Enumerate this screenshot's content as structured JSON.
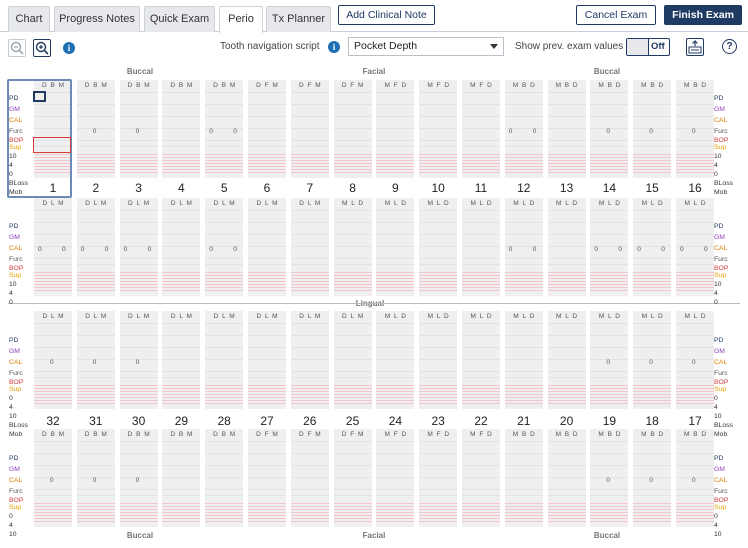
{
  "tabs": [
    {
      "label": "Chart",
      "active": false
    },
    {
      "label": "Progress Notes",
      "active": false
    },
    {
      "label": "Quick Exam",
      "active": false
    },
    {
      "label": "Perio",
      "active": true
    },
    {
      "label": "Tx Planner",
      "active": false
    }
  ],
  "actions": {
    "add_clinical_note": "Add Clinical Note",
    "cancel_exam": "Cancel Exam",
    "finish_exam": "Finish Exam"
  },
  "toolbar": {
    "nav_script_label": "Tooth navigation script",
    "nav_script_value": "Pocket Depth",
    "show_prev_label": "Show prev. exam values",
    "toggle_state": "Off",
    "info_glyph": "i",
    "help_glyph": "?"
  },
  "sections": {
    "buccal": "Buccal",
    "facial": "Facial",
    "lingual": "Lingual"
  },
  "row_labels": {
    "pd": "PD",
    "gm": "GM",
    "cal": "CAL",
    "furc": "Furc",
    "bop": "BOP",
    "sup": "Sup",
    "bloss": "BLoss",
    "mob": "Mob",
    "scale_top": [
      "10",
      "4",
      "0"
    ],
    "scale_bottom": [
      "0",
      "4",
      "10"
    ]
  },
  "colors": {
    "pd": "#1f3a63",
    "gm": "#8a3fb5",
    "cal": "#e07b00",
    "bop": "#d23b3b",
    "sup": "#e0a000",
    "brand": "#1f3a63"
  },
  "upper_teeth": [
    {
      "num": "1",
      "top": "D B M",
      "bot": "D L M",
      "furc_top": [],
      "furc_bot": [
        "0",
        "0"
      ]
    },
    {
      "num": "2",
      "top": "D B M",
      "bot": "D L M",
      "furc_top": [
        "0"
      ],
      "furc_bot": [
        "0",
        "0"
      ]
    },
    {
      "num": "3",
      "top": "D B M",
      "bot": "D L M",
      "furc_top": [
        "0"
      ],
      "furc_bot": [
        "0",
        "0"
      ]
    },
    {
      "num": "4",
      "top": "D B M",
      "bot": "D L M",
      "furc_top": [],
      "furc_bot": []
    },
    {
      "num": "5",
      "top": "D B M",
      "bot": "D L M",
      "furc_top": [
        "0",
        "0"
      ],
      "furc_bot": [
        "0",
        "0"
      ]
    },
    {
      "num": "6",
      "top": "D F M",
      "bot": "D L M",
      "furc_top": [],
      "furc_bot": []
    },
    {
      "num": "7",
      "top": "D F M",
      "bot": "D L M",
      "furc_top": [],
      "furc_bot": []
    },
    {
      "num": "8",
      "top": "D F M",
      "bot": "M L D",
      "furc_top": [],
      "furc_bot": []
    },
    {
      "num": "9",
      "top": "M F D",
      "bot": "M L D",
      "furc_top": [],
      "furc_bot": []
    },
    {
      "num": "10",
      "top": "M F D",
      "bot": "M L D",
      "furc_top": [],
      "furc_bot": []
    },
    {
      "num": "11",
      "top": "M F D",
      "bot": "M L D",
      "furc_top": [],
      "furc_bot": []
    },
    {
      "num": "12",
      "top": "M B D",
      "bot": "M L D",
      "furc_top": [
        "0",
        "0"
      ],
      "furc_bot": [
        "0",
        "0"
      ]
    },
    {
      "num": "13",
      "top": "M B D",
      "bot": "M L D",
      "furc_top": [],
      "furc_bot": []
    },
    {
      "num": "14",
      "top": "M B D",
      "bot": "M L D",
      "furc_top": [
        "0"
      ],
      "furc_bot": [
        "0",
        "0"
      ]
    },
    {
      "num": "15",
      "top": "M B D",
      "bot": "M L D",
      "furc_top": [
        "0"
      ],
      "furc_bot": [
        "0",
        "0"
      ]
    },
    {
      "num": "16",
      "top": "M B D",
      "bot": "M L D",
      "furc_top": [
        "0"
      ],
      "furc_bot": [
        "0",
        "0"
      ]
    }
  ],
  "lower_teeth": [
    {
      "num": "32",
      "top": "D L M",
      "bot": "D B M",
      "furc_top": [
        "0"
      ],
      "furc_bot": [
        "0"
      ]
    },
    {
      "num": "31",
      "top": "D L M",
      "bot": "D B M",
      "furc_top": [
        "0"
      ],
      "furc_bot": [
        "0"
      ]
    },
    {
      "num": "30",
      "top": "D L M",
      "bot": "D B M",
      "furc_top": [
        "0"
      ],
      "furc_bot": [
        "0"
      ]
    },
    {
      "num": "29",
      "top": "D L M",
      "bot": "D B M",
      "furc_top": [],
      "furc_bot": []
    },
    {
      "num": "28",
      "top": "D L M",
      "bot": "D B M",
      "furc_top": [],
      "furc_bot": []
    },
    {
      "num": "27",
      "top": "D L M",
      "bot": "D F M",
      "furc_top": [],
      "furc_bot": []
    },
    {
      "num": "26",
      "top": "D L M",
      "bot": "D F M",
      "furc_top": [],
      "furc_bot": []
    },
    {
      "num": "25",
      "top": "D L M",
      "bot": "D F M",
      "furc_top": [],
      "furc_bot": []
    },
    {
      "num": "24",
      "top": "M L D",
      "bot": "M F D",
      "furc_top": [],
      "furc_bot": []
    },
    {
      "num": "23",
      "top": "M L D",
      "bot": "M F D",
      "furc_top": [],
      "furc_bot": []
    },
    {
      "num": "22",
      "top": "M L D",
      "bot": "M F D",
      "furc_top": [],
      "furc_bot": []
    },
    {
      "num": "21",
      "top": "M L D",
      "bot": "M B D",
      "furc_top": [],
      "furc_bot": []
    },
    {
      "num": "20",
      "top": "M L D",
      "bot": "M B D",
      "furc_top": [],
      "furc_bot": []
    },
    {
      "num": "19",
      "top": "M L D",
      "bot": "M B D",
      "furc_top": [
        "0"
      ],
      "furc_bot": [
        "0"
      ]
    },
    {
      "num": "18",
      "top": "M L D",
      "bot": "M B D",
      "furc_top": [
        "0"
      ],
      "furc_bot": [
        "0"
      ]
    },
    {
      "num": "17",
      "top": "M L D",
      "bot": "M B D",
      "furc_top": [
        "0"
      ],
      "furc_bot": [
        "0"
      ]
    }
  ]
}
